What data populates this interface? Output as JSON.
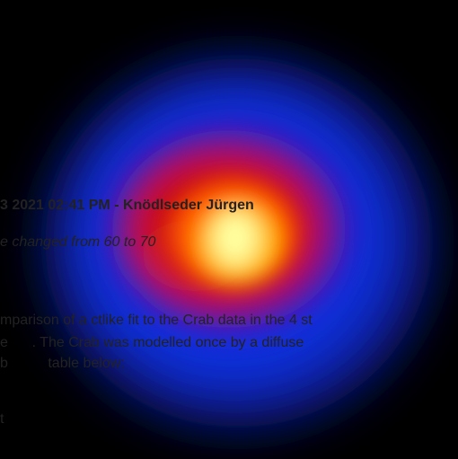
{
  "journal": {
    "header": "3 2021 02:41 PM - Knödlseder Jürgen",
    "detail": "e changed from 60 to 70",
    "paragraph": [
      "mparison of a ctlike fit to the Crab data in the 4 st",
      "e      . The Crab was modelled once by a diffuse",
      "b          table below:"
    ],
    "fragment": "t"
  }
}
